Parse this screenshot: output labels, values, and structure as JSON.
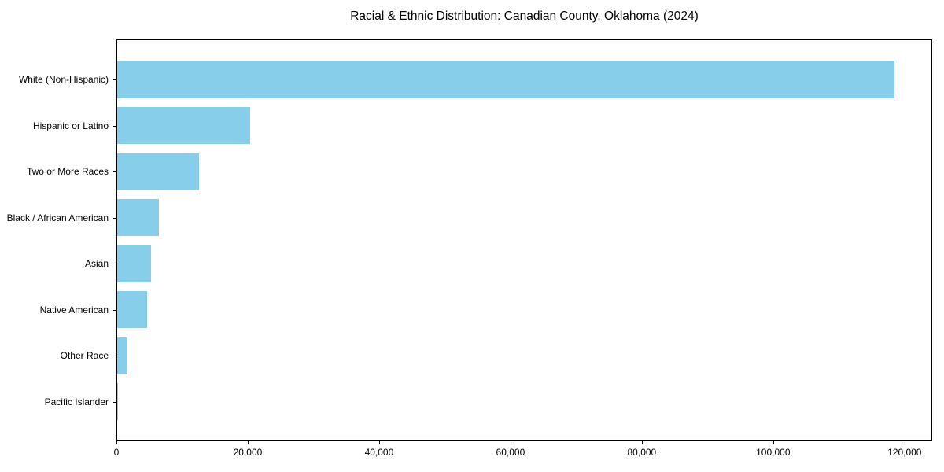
{
  "chart_data": {
    "type": "bar",
    "orientation": "horizontal",
    "title": "Racial & Ethnic Distribution: Canadian County, Oklahoma (2024)",
    "categories": [
      "White (Non-Hispanic)",
      "Hispanic or Latino",
      "Two or More Races",
      "Black / African American",
      "Asian",
      "Native American",
      "Other Race",
      "Pacific Islander"
    ],
    "values": [
      118300,
      20200,
      12400,
      6400,
      5200,
      4500,
      1500,
      150
    ],
    "xlabel": "",
    "ylabel": "",
    "xlim": [
      0,
      124215
    ],
    "xticks": [
      0,
      20000,
      40000,
      60000,
      80000,
      100000,
      120000
    ],
    "xtick_labels": [
      "0",
      "20,000",
      "40,000",
      "60,000",
      "80,000",
      "100,000",
      "120,000"
    ],
    "bar_color": "#87CEEB",
    "grid": false,
    "legend": null
  }
}
